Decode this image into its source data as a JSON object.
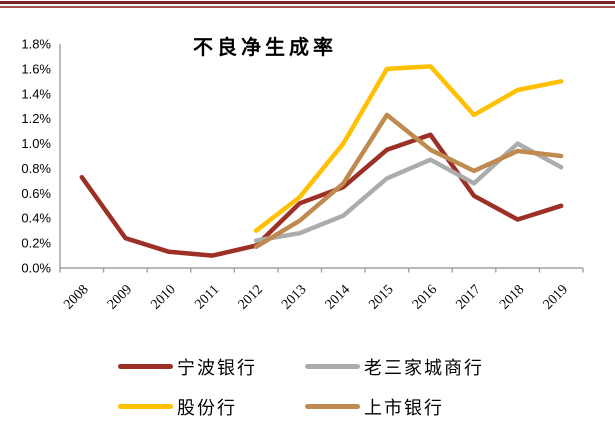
{
  "decor": {
    "top_border_dark_color": "#7B2125",
    "top_border_light_color": "#A34F4B",
    "axis_color": "#A0A0A0",
    "text_color": "#000000"
  },
  "chart_data": {
    "type": "line",
    "title": "不良净生成率",
    "categories": [
      "2008",
      "2009",
      "2010",
      "2011",
      "2012",
      "2013",
      "2014",
      "2015",
      "2016",
      "2017",
      "2018",
      "2019"
    ],
    "series": [
      {
        "name": "宁波银行",
        "color": "#9C2F26",
        "values": [
          0.73,
          0.24,
          0.13,
          0.1,
          0.18,
          0.52,
          0.65,
          0.95,
          1.07,
          0.58,
          0.39,
          0.5
        ]
      },
      {
        "name": "老三家城商行",
        "color": "#ACACAC",
        "values": [
          null,
          null,
          null,
          null,
          0.22,
          0.28,
          0.42,
          0.72,
          0.87,
          0.68,
          1.0,
          0.81
        ]
      },
      {
        "name": "股份行",
        "color": "#FFC000",
        "values": [
          null,
          null,
          null,
          null,
          0.3,
          0.57,
          1.0,
          1.6,
          1.62,
          1.23,
          1.43,
          1.5
        ]
      },
      {
        "name": "上市银行",
        "color": "#BE8A50",
        "values": [
          null,
          null,
          null,
          null,
          0.17,
          0.38,
          0.68,
          1.23,
          0.95,
          0.78,
          0.94,
          0.9
        ]
      }
    ],
    "xlabel": "",
    "ylabel": "",
    "ylim": [
      0,
      1.8
    ],
    "ytick_step": 0.2,
    "ytick_format": "0.0%",
    "grid": false,
    "legend_position": "bottom",
    "draw_order": [
      0,
      1,
      2,
      3
    ]
  }
}
